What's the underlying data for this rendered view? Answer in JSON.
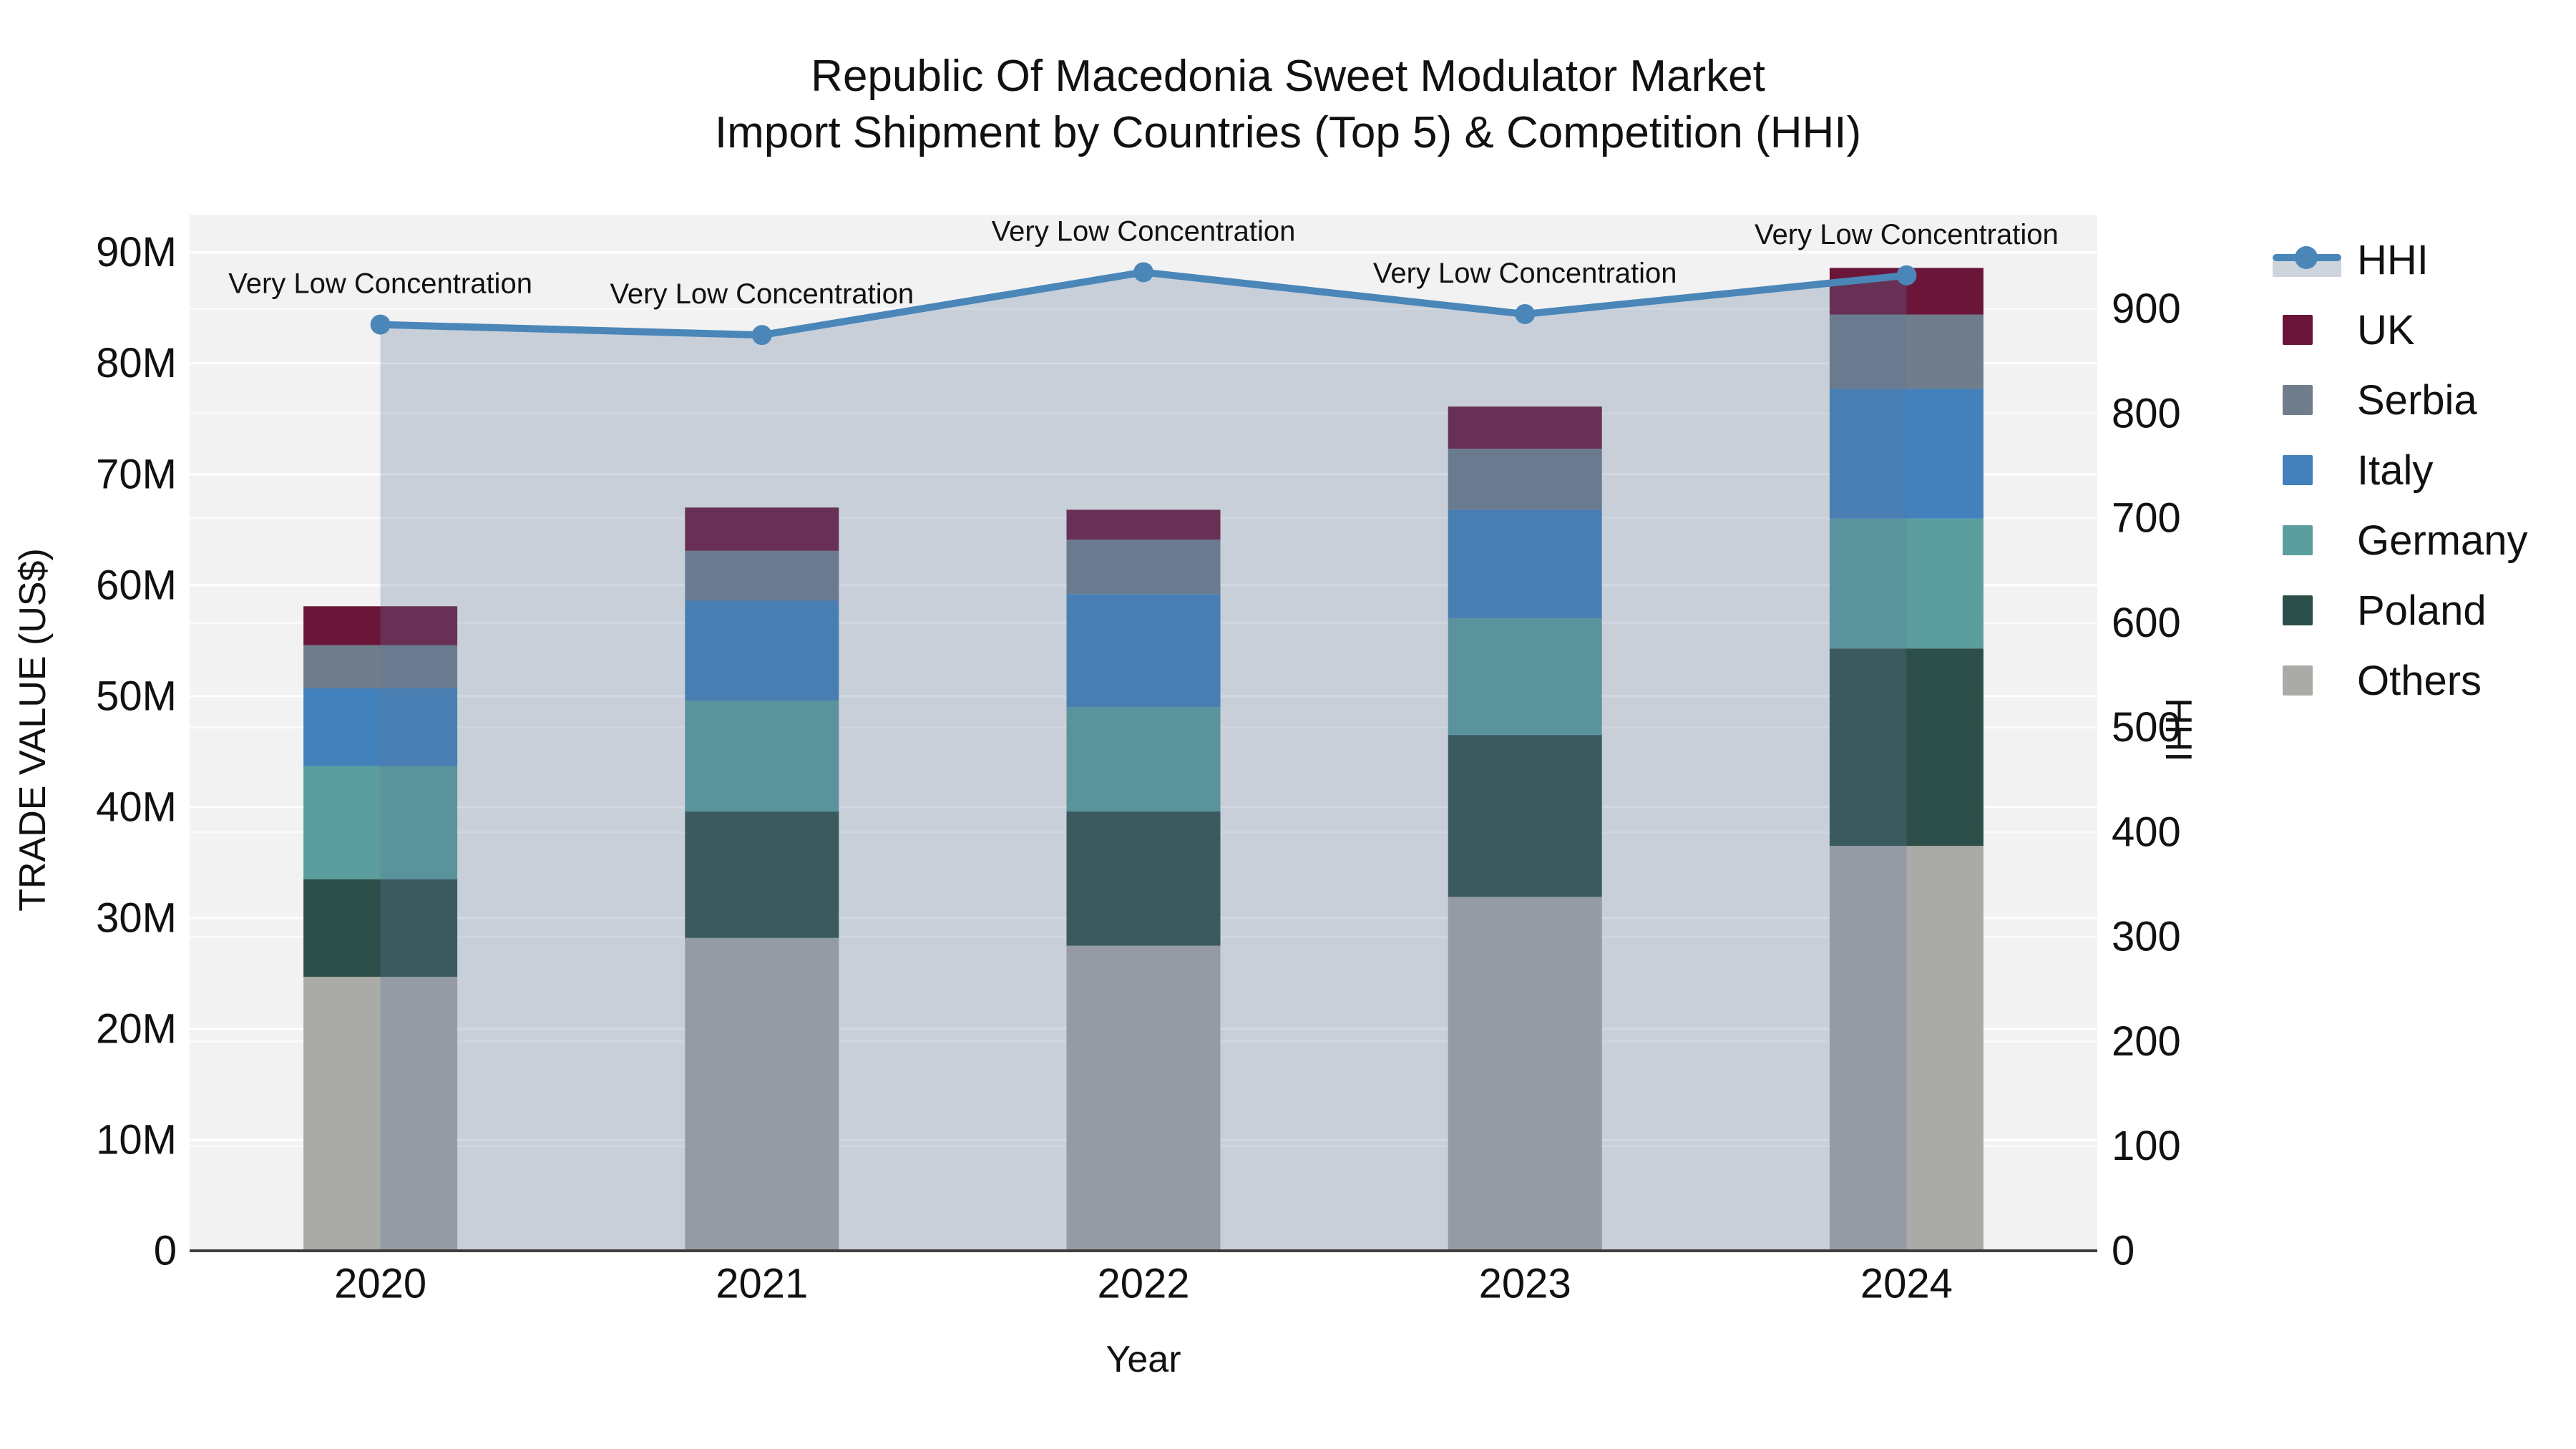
{
  "chart_data": {
    "type": "bar",
    "stacking": "stacked",
    "secondary_type": "line",
    "title_lines": [
      "Republic Of Macedonia Sweet Modulator Market",
      "Import Shipment by Countries (Top 5) & Competition (HHI)"
    ],
    "xlabel": "Year",
    "ylabel_left": "TRADE VALUE (US$)",
    "ylabel_right": "HHI",
    "categories": [
      "2020",
      "2021",
      "2022",
      "2023",
      "2024"
    ],
    "value_unit": "M US$",
    "series": [
      {
        "name": "Others",
        "color": "#aaaaa6",
        "values": [
          24.7,
          28.2,
          27.5,
          31.9,
          36.5
        ]
      },
      {
        "name": "Poland",
        "color": "#2d4f49",
        "values": [
          8.8,
          11.4,
          12.1,
          14.6,
          17.8
        ]
      },
      {
        "name": "Germany",
        "color": "#5b9e9d",
        "values": [
          10.2,
          10.0,
          9.4,
          10.5,
          11.7
        ]
      },
      {
        "name": "Italy",
        "color": "#4281bb",
        "values": [
          7.0,
          9.0,
          10.2,
          9.8,
          11.7
        ]
      },
      {
        "name": "Serbia",
        "color": "#6f7d8c",
        "values": [
          3.9,
          4.5,
          4.9,
          5.5,
          6.7
        ]
      },
      {
        "name": "UK",
        "color": "#6b1639",
        "values": [
          3.5,
          3.9,
          2.7,
          3.8,
          4.2
        ]
      }
    ],
    "bar_totals": [
      58.1,
      67.0,
      66.8,
      76.1,
      88.6
    ],
    "line_series": {
      "name": "HHI",
      "axis": "right",
      "values": [
        885,
        875,
        935,
        895,
        932
      ],
      "color": "#4a86b8",
      "area_fill": "rgba(94,118,154,0.28)",
      "legend_band_color": "#cdd4dc"
    },
    "annotations": [
      {
        "x": "2020",
        "text": "Very Low Concentration"
      },
      {
        "x": "2021",
        "text": "Very Low Concentration"
      },
      {
        "x": "2022",
        "text": "Very Low Concentration"
      },
      {
        "x": "2023",
        "text": "Very Low Concentration"
      },
      {
        "x": "2024",
        "text": "Very Low Concentration"
      }
    ],
    "y_left": {
      "ticks": [
        "0",
        "10M",
        "20M",
        "30M",
        "40M",
        "50M",
        "60M",
        "70M",
        "80M",
        "90M"
      ],
      "tick_values": [
        0,
        10,
        20,
        30,
        40,
        50,
        60,
        70,
        80,
        90
      ],
      "range_m": [
        0,
        93.4
      ]
    },
    "y_right": {
      "ticks": [
        "0",
        "100",
        "200",
        "300",
        "400",
        "500",
        "600",
        "700",
        "800",
        "900"
      ],
      "tick_values": [
        0,
        100,
        200,
        300,
        400,
        500,
        600,
        700,
        800,
        900
      ],
      "range": [
        0,
        990
      ]
    },
    "legend_order": [
      "HHI",
      "UK",
      "Serbia",
      "Italy",
      "Germany",
      "Poland",
      "Others"
    ],
    "colors": {
      "plot_background": "#f2f2f2",
      "gridline": "#ffffff",
      "axis_line": "#3f3f3f",
      "text": "#111111"
    }
  }
}
